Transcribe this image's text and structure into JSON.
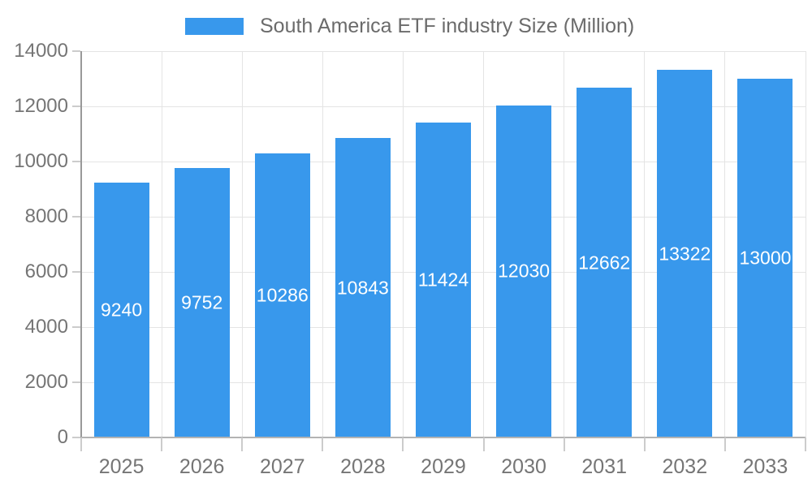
{
  "chart_data": {
    "type": "bar",
    "title": "",
    "legend": {
      "label": "South America ETF industry Size (Million)",
      "position": "top"
    },
    "categories": [
      "2025",
      "2026",
      "2027",
      "2028",
      "2029",
      "2030",
      "2031",
      "2032",
      "2033"
    ],
    "series": [
      {
        "name": "South America ETF industry Size (Million)",
        "values": [
          9240,
          9752,
          10286,
          10843,
          11424,
          12030,
          12662,
          13322,
          13000
        ]
      }
    ],
    "xlabel": "",
    "ylabel": "",
    "ylim": [
      0,
      14000
    ],
    "yticks": [
      0,
      2000,
      4000,
      6000,
      8000,
      10000,
      12000,
      14000
    ],
    "grid": true,
    "value_labels": {
      "position": "inside-center",
      "color": "#ffffff"
    },
    "colors": {
      "bar": "#3898ec",
      "axis_text": "#757575",
      "legend_text": "#6b6b6b",
      "gridline": "#e4e4e4",
      "axis_line": "#999999",
      "baseline": "#b3b3b3",
      "tick": "#cccccc",
      "background": "#ffffff"
    }
  }
}
